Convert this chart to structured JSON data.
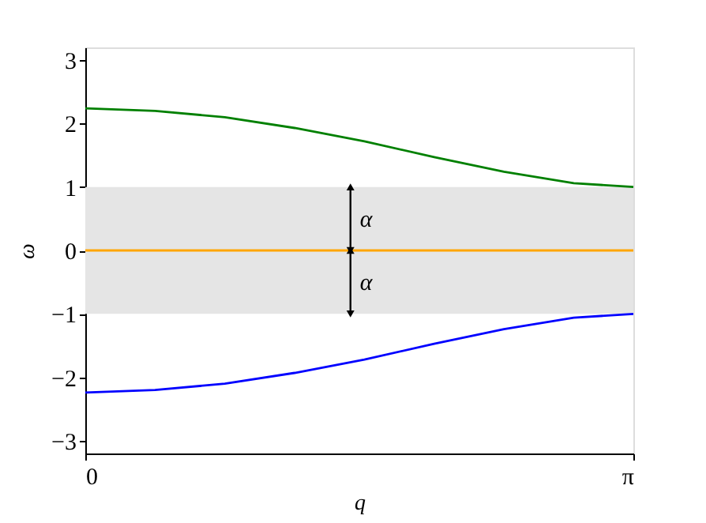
{
  "chart_data": {
    "type": "line",
    "xlabel": "q",
    "ylabel": "ω",
    "xlim": [
      0,
      3.14159
    ],
    "ylim": [
      -3.2,
      3.2
    ],
    "xticks": [
      0,
      {
        "value": 3.14159,
        "label": "π"
      }
    ],
    "yticks": [
      {
        "value": -3,
        "label": "−3"
      },
      {
        "value": -2,
        "label": "−2"
      },
      {
        "value": -1,
        "label": "−1"
      },
      0,
      1,
      2,
      3
    ],
    "x": [
      0,
      0.4,
      0.8,
      1.2,
      1.6,
      2.0,
      2.4,
      2.8,
      3.14159
    ],
    "series": [
      {
        "color": "#008000",
        "values": [
          2.24,
          2.2,
          2.1,
          1.93,
          1.72,
          1.47,
          1.24,
          1.06,
          1.0
        ]
      },
      {
        "color": "#0000ff",
        "values": [
          -2.24,
          -2.2,
          -2.1,
          -1.93,
          -1.72,
          -1.47,
          -1.24,
          -1.06,
          -1.0
        ]
      },
      {
        "color": "#ffa500",
        "x": [
          0,
          3.14159
        ],
        "values": [
          0,
          0
        ]
      }
    ],
    "bands": [
      {
        "axis": "y",
        "from": -1,
        "to": 1,
        "color": "#e5e5e5"
      }
    ],
    "annotations": [
      {
        "text": "α",
        "x": 1.52,
        "y": 1
      },
      {
        "text": "α",
        "x": 1.52,
        "y": -1
      }
    ],
    "grid": false,
    "marker": "none",
    "line_style": "solid"
  }
}
